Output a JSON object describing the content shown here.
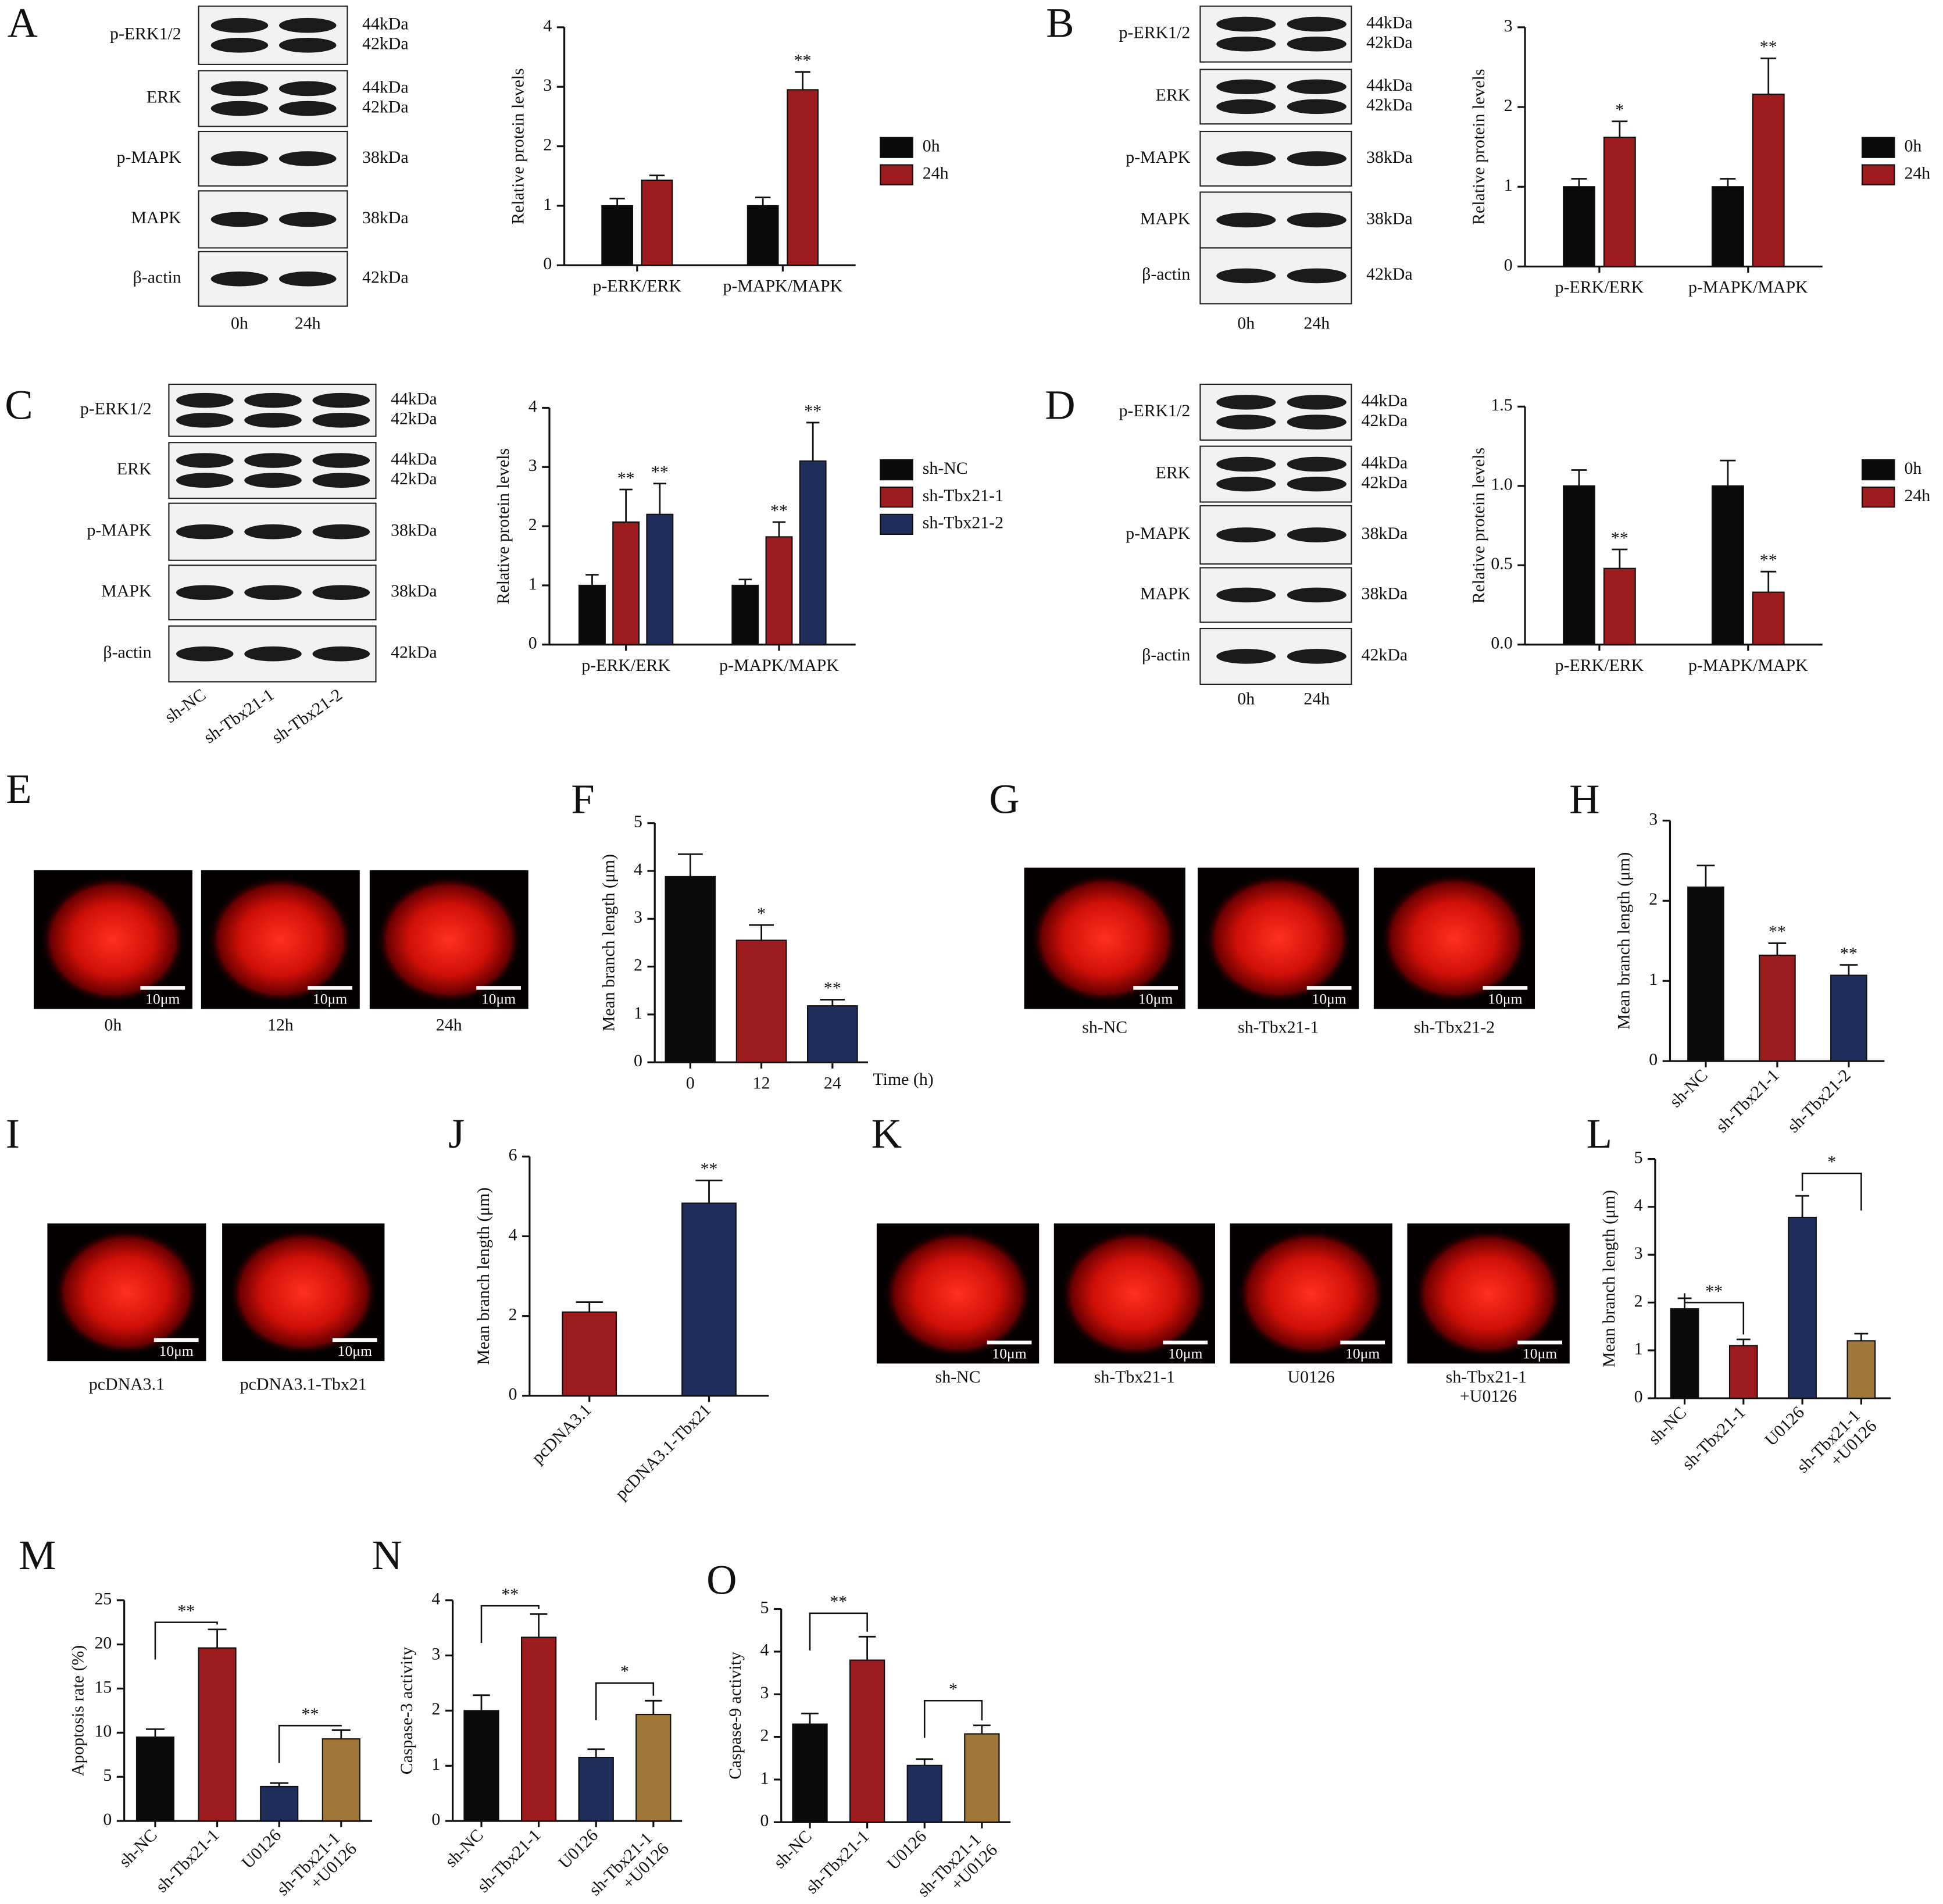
{
  "panel_labels": [
    "A",
    "B",
    "C",
    "D",
    "E",
    "F",
    "G",
    "H",
    "I",
    "J",
    "K",
    "L",
    "M",
    "N",
    "O"
  ],
  "blots": [
    {
      "rows": [
        {
          "name": "p-ERK1/2",
          "kda": [
            "44kDa",
            "42kDa"
          ]
        },
        {
          "name": "ERK",
          "kda": [
            "44kDa",
            "42kDa"
          ]
        },
        {
          "name": "p-MAPK",
          "kda": [
            "38kDa"
          ]
        },
        {
          "name": "MAPK",
          "kda": [
            "38kDa"
          ]
        },
        {
          "name": "β-actin",
          "kda": [
            "42kDa"
          ]
        }
      ],
      "lanes": [
        "0h",
        "24h"
      ]
    },
    {
      "rows": [
        {
          "name": "p-ERK1/2",
          "kda": [
            "44kDa",
            "42kDa"
          ]
        },
        {
          "name": "ERK",
          "kda": [
            "44kDa",
            "42kDa"
          ]
        },
        {
          "name": "p-MAPK",
          "kda": [
            "38kDa"
          ]
        },
        {
          "name": "MAPK",
          "kda": [
            "38kDa"
          ]
        },
        {
          "name": "β-actin",
          "kda": [
            "42kDa"
          ]
        }
      ],
      "lanes": [
        "0h",
        "24h"
      ]
    },
    {
      "rows": [
        {
          "name": "p-ERK1/2",
          "kda": [
            "44kDa",
            "42kDa"
          ]
        },
        {
          "name": "ERK",
          "kda": [
            "44kDa",
            "42kDa"
          ]
        },
        {
          "name": "p-MAPK",
          "kda": [
            "38kDa"
          ]
        },
        {
          "name": "MAPK",
          "kda": [
            "38kDa"
          ]
        },
        {
          "name": "β-actin",
          "kda": [
            "42kDa"
          ]
        }
      ],
      "lanes": [
        "sh-NC",
        "sh-Tbx21-1",
        "sh-Tbx21-2"
      ]
    },
    {
      "rows": [
        {
          "name": "p-ERK1/2",
          "kda": [
            "44kDa",
            "42kDa"
          ]
        },
        {
          "name": "ERK",
          "kda": [
            "44kDa",
            "42kDa"
          ]
        },
        {
          "name": "p-MAPK",
          "kda": [
            "38kDa"
          ]
        },
        {
          "name": "MAPK",
          "kda": [
            "38kDa"
          ]
        },
        {
          "name": "β-actin",
          "kda": [
            "42kDa"
          ]
        }
      ],
      "lanes": [
        "0h",
        "24h"
      ]
    }
  ],
  "micrographs": [
    {
      "scale_bar": "10μm",
      "labels": [
        "0h",
        "12h",
        "24h"
      ]
    },
    {
      "scale_bar": "10μm",
      "labels": [
        "sh-NC",
        "sh-Tbx21-1",
        "sh-Tbx21-2"
      ]
    },
    {
      "scale_bar": "10μm",
      "labels": [
        "pcDNA3.1",
        "pcDNA3.1-Tbx21"
      ]
    },
    {
      "scale_bar": "10μm",
      "labels": [
        "sh-NC",
        "sh-Tbx21-1",
        "U0126",
        "sh-Tbx21-1\n+U0126"
      ]
    }
  ],
  "chart_data": [
    {
      "type": "bar",
      "ylabel": "Relative protein levels",
      "categories": [
        "p-ERK/ERK",
        "p-MAPK/MAPK"
      ],
      "ylim": [
        0,
        4
      ],
      "yticks": [
        0,
        1,
        2,
        3,
        4
      ],
      "series": [
        {
          "name": "0h",
          "color": "#0a0a0a",
          "values": [
            1,
            1
          ],
          "errors": [
            0.12,
            0.14
          ],
          "sig": [
            null,
            null
          ]
        },
        {
          "name": "24h",
          "color": "#9b1b1e",
          "values": [
            1.43,
            2.95
          ],
          "errors": [
            0.08,
            0.3
          ],
          "sig": [
            null,
            "**"
          ]
        }
      ]
    },
    {
      "type": "bar",
      "ylabel": "Relative protein levels",
      "categories": [
        "p-ERK/ERK",
        "p-MAPK/MAPK"
      ],
      "ylim": [
        0,
        3
      ],
      "yticks": [
        0,
        1,
        2,
        3
      ],
      "series": [
        {
          "name": "0h",
          "color": "#0a0a0a",
          "values": [
            1,
            1
          ],
          "errors": [
            0.1,
            0.1
          ],
          "sig": [
            null,
            null
          ]
        },
        {
          "name": "24h",
          "color": "#9b1b1e",
          "values": [
            1.62,
            2.16
          ],
          "errors": [
            0.2,
            0.45
          ],
          "sig": [
            "*",
            "**"
          ]
        }
      ]
    },
    {
      "type": "bar",
      "ylabel": "Relative protein levels",
      "categories": [
        "p-ERK/ERK",
        "p-MAPK/MAPK"
      ],
      "ylim": [
        0,
        4
      ],
      "yticks": [
        0,
        1,
        2,
        3,
        4
      ],
      "series": [
        {
          "name": "sh-NC",
          "color": "#0a0a0a",
          "values": [
            1,
            1
          ],
          "errors": [
            0.18,
            0.1
          ],
          "sig": [
            null,
            null
          ]
        },
        {
          "name": "sh-Tbx21-1",
          "color": "#9b1b1e",
          "values": [
            2.07,
            1.82
          ],
          "errors": [
            0.55,
            0.25
          ],
          "sig": [
            "**",
            "**"
          ]
        },
        {
          "name": "sh-Tbx21-2",
          "color": "#1f2d5a",
          "values": [
            2.2,
            3.1
          ],
          "errors": [
            0.52,
            0.65
          ],
          "sig": [
            "**",
            "**"
          ]
        }
      ]
    },
    {
      "type": "bar",
      "ylabel": "Relative protein levels",
      "categories": [
        "p-ERK/ERK",
        "p-MAPK/MAPK"
      ],
      "ylim": [
        0,
        1.5
      ],
      "yticks": [
        {
          "value": 0,
          "label": "0.0"
        },
        0.5,
        {
          "value": 1,
          "label": "1.0"
        },
        1.5
      ],
      "series": [
        {
          "name": "0h",
          "color": "#0a0a0a",
          "values": [
            1,
            1
          ],
          "errors": [
            0.1,
            0.16
          ],
          "sig": [
            null,
            null
          ]
        },
        {
          "name": "24h",
          "color": "#9b1b1e",
          "values": [
            0.48,
            0.33
          ],
          "errors": [
            0.12,
            0.13
          ],
          "sig": [
            "**",
            "**"
          ]
        }
      ]
    },
    {
      "type": "bar",
      "ylabel": "Mean branch length (μm)",
      "xlabel": "Time (h)",
      "categories": [
        "0",
        "12",
        "24"
      ],
      "ylim": [
        0,
        5
      ],
      "yticks": [
        0,
        1,
        2,
        3,
        4,
        5
      ],
      "series": [
        {
          "colors": [
            "#0a0a0a",
            "#9b1b1e",
            "#1f2d5a"
          ],
          "values": [
            3.88,
            2.55,
            1.18
          ],
          "errors": [
            0.47,
            0.32,
            0.13
          ],
          "sig": [
            null,
            "*",
            "**"
          ]
        }
      ]
    },
    {
      "type": "bar",
      "ylabel": "Mean branch length (μm)",
      "categories": [
        "sh-NC",
        "sh-Tbx21-1",
        "sh-Tbx21-2"
      ],
      "ylim": [
        0,
        3
      ],
      "yticks": [
        0,
        1,
        2,
        3
      ],
      "series": [
        {
          "colors": [
            "#0a0a0a",
            "#9b1b1e",
            "#1f2d5a"
          ],
          "values": [
            2.17,
            1.32,
            1.07
          ],
          "errors": [
            0.27,
            0.15,
            0.13
          ],
          "sig": [
            null,
            "**",
            "**"
          ]
        }
      ]
    },
    {
      "type": "bar",
      "ylabel": "Mean branch length (μm)",
      "categories": [
        "pcDNA3.1",
        "pcDNA3.1-Tbx21"
      ],
      "ylim": [
        0,
        6
      ],
      "yticks": [
        0,
        2,
        4,
        6
      ],
      "series": [
        {
          "colors": [
            "#9b1b1e",
            "#1f2d5a"
          ],
          "values": [
            2.1,
            4.83
          ],
          "errors": [
            0.25,
            0.57
          ],
          "sig": [
            null,
            "**"
          ]
        }
      ]
    },
    {
      "type": "bar",
      "ylabel": "Mean branch length (μm)",
      "categories": [
        "sh-NC",
        "sh-Tbx21-1",
        "U0126",
        "sh-Tbx21-1\n+U0126"
      ],
      "ylim": [
        0,
        5
      ],
      "yticks": [
        0,
        1,
        2,
        3,
        4,
        5
      ],
      "series": [
        {
          "colors": [
            "#0a0a0a",
            "#9b1b1e",
            "#1f2d5a",
            "#a0783a"
          ],
          "values": [
            1.87,
            1.1,
            3.78,
            1.2
          ],
          "errors": [
            0.22,
            0.13,
            0.45,
            0.15
          ]
        }
      ],
      "brackets": [
        {
          "between": [
            "sh-NC",
            "sh-Tbx21-1"
          ],
          "y": 2.0,
          "label": "**"
        },
        {
          "between": [
            "U0126",
            "sh-Tbx21-1\n+U0126"
          ],
          "y": 4.7,
          "label": "*"
        }
      ]
    },
    {
      "type": "bar",
      "ylabel": "Apoptosis rate (%)",
      "categories": [
        "sh-NC",
        "sh-Tbx21-1",
        "U0126",
        "sh-Tbx21-1\n+U0126"
      ],
      "ylim": [
        0,
        25
      ],
      "yticks": [
        0,
        5,
        10,
        15,
        20,
        25
      ],
      "series": [
        {
          "colors": [
            "#0a0a0a",
            "#9b1b1e",
            "#1f2d5a",
            "#a0783a"
          ],
          "values": [
            9.5,
            19.6,
            3.9,
            9.3
          ],
          "errors": [
            0.9,
            2.1,
            0.4,
            1.0
          ]
        }
      ],
      "brackets": [
        {
          "between": [
            "sh-NC",
            "sh-Tbx21-1"
          ],
          "y": 22.5,
          "label": "**"
        },
        {
          "between": [
            "U0126",
            "sh-Tbx21-1\n+U0126"
          ],
          "y": 10.8,
          "label": "**"
        }
      ]
    },
    {
      "type": "bar",
      "ylabel": "Caspase-3 activity",
      "categories": [
        "sh-NC",
        "sh-Tbx21-1",
        "U0126",
        "sh-Tbx21-1\n+U0126"
      ],
      "ylim": [
        0,
        4
      ],
      "yticks": [
        0,
        1,
        2,
        3,
        4
      ],
      "series": [
        {
          "colors": [
            "#0a0a0a",
            "#9b1b1e",
            "#1f2d5a",
            "#a0783a"
          ],
          "values": [
            2.0,
            3.33,
            1.15,
            1.93
          ],
          "errors": [
            0.28,
            0.42,
            0.15,
            0.25
          ]
        }
      ],
      "brackets": [
        {
          "between": [
            "sh-NC",
            "sh-Tbx21-1"
          ],
          "y": 3.9,
          "label": "**"
        },
        {
          "between": [
            "U0126",
            "sh-Tbx21-1\n+U0126"
          ],
          "y": 2.5,
          "label": "*"
        }
      ]
    },
    {
      "type": "bar",
      "ylabel": "Caspase-9 activity",
      "categories": [
        "sh-NC",
        "sh-Tbx21-1",
        "U0126",
        "sh-Tbx21-1\n+U0126"
      ],
      "ylim": [
        0,
        5
      ],
      "yticks": [
        0,
        1,
        2,
        3,
        4,
        5
      ],
      "series": [
        {
          "colors": [
            "#0a0a0a",
            "#9b1b1e",
            "#1f2d5a",
            "#a0783a"
          ],
          "values": [
            2.3,
            3.8,
            1.33,
            2.07
          ],
          "errors": [
            0.25,
            0.55,
            0.15,
            0.2
          ]
        }
      ],
      "brackets": [
        {
          "between": [
            "sh-NC",
            "sh-Tbx21-1"
          ],
          "y": 4.9,
          "label": "**"
        },
        {
          "between": [
            "U0126",
            "sh-Tbx21-1\n+U0126"
          ],
          "y": 2.85,
          "label": "*"
        }
      ]
    }
  ]
}
